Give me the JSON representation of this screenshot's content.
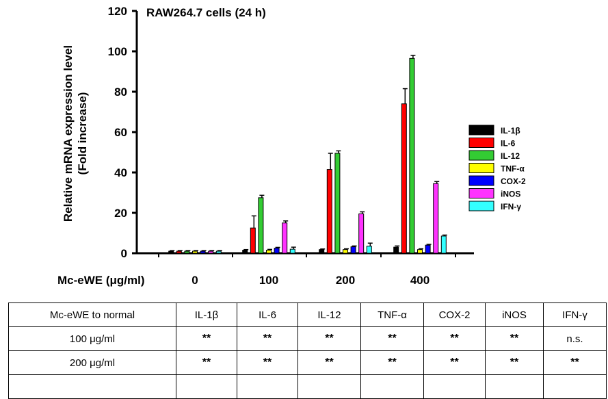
{
  "chart_data": {
    "type": "bar",
    "title": "RAW264.7 cells (24 h)",
    "ylabel_line1": "Relative mRNA expression level",
    "ylabel_line2": "(Fold increase)",
    "xlabel": "Mc-eWE (μg/ml)",
    "categories": [
      "0",
      "100",
      "200",
      "400"
    ],
    "ylim": [
      0,
      120
    ],
    "yticks": [
      "0",
      "20",
      "40",
      "60",
      "80",
      "100",
      "120"
    ],
    "series": [
      {
        "name": "IL-1β",
        "color": "#000000",
        "values": [
          1,
          1.5,
          1.8,
          3.0
        ],
        "errors": [
          0.3,
          0.3,
          0.3,
          0.6
        ]
      },
      {
        "name": "IL-6",
        "color": "#ff0000",
        "values": [
          1,
          12.5,
          41.5,
          74
        ],
        "errors": [
          0.3,
          6,
          8,
          7.5
        ]
      },
      {
        "name": "IL-12",
        "color": "#33cc33",
        "values": [
          1,
          27.5,
          49.5,
          96.5
        ],
        "errors": [
          0.3,
          1.2,
          1.2,
          1.5
        ]
      },
      {
        "name": "TNF-α",
        "color": "#ffff00",
        "values": [
          1,
          1.5,
          1.8,
          1.8
        ],
        "errors": [
          0.3,
          0.4,
          0.4,
          0.4
        ]
      },
      {
        "name": "COX-2",
        "color": "#0000ff",
        "values": [
          1,
          2.5,
          3.2,
          4.0
        ],
        "errors": [
          0.3,
          0.4,
          0.4,
          0.4
        ]
      },
      {
        "name": "iNOS",
        "color": "#ff33ff",
        "values": [
          1,
          15,
          19.5,
          34.5
        ],
        "errors": [
          0.3,
          1,
          1,
          1
        ]
      },
      {
        "name": "IFN-γ",
        "color": "#33ffff",
        "values": [
          1,
          2.0,
          3.5,
          8.5
        ],
        "errors": [
          0.3,
          1,
          1.5,
          0.5
        ]
      }
    ],
    "legend_position": "right"
  },
  "table": {
    "header": [
      "Mc-eWE to normal",
      "IL-1β",
      "IL-6",
      "IL-12",
      "TNF-α",
      "COX-2",
      "iNOS",
      "IFN-γ"
    ],
    "rows": [
      {
        "label": "100 μg/ml",
        "cells": [
          "**",
          "**",
          "**",
          "**",
          "**",
          "**",
          "n.s."
        ]
      },
      {
        "label": "200 μg/ml",
        "cells": [
          "**",
          "**",
          "**",
          "**",
          "**",
          "**",
          "**"
        ]
      },
      {
        "label": "",
        "cells": [
          "",
          "",
          "",
          "",
          "",
          "",
          ""
        ]
      }
    ]
  }
}
